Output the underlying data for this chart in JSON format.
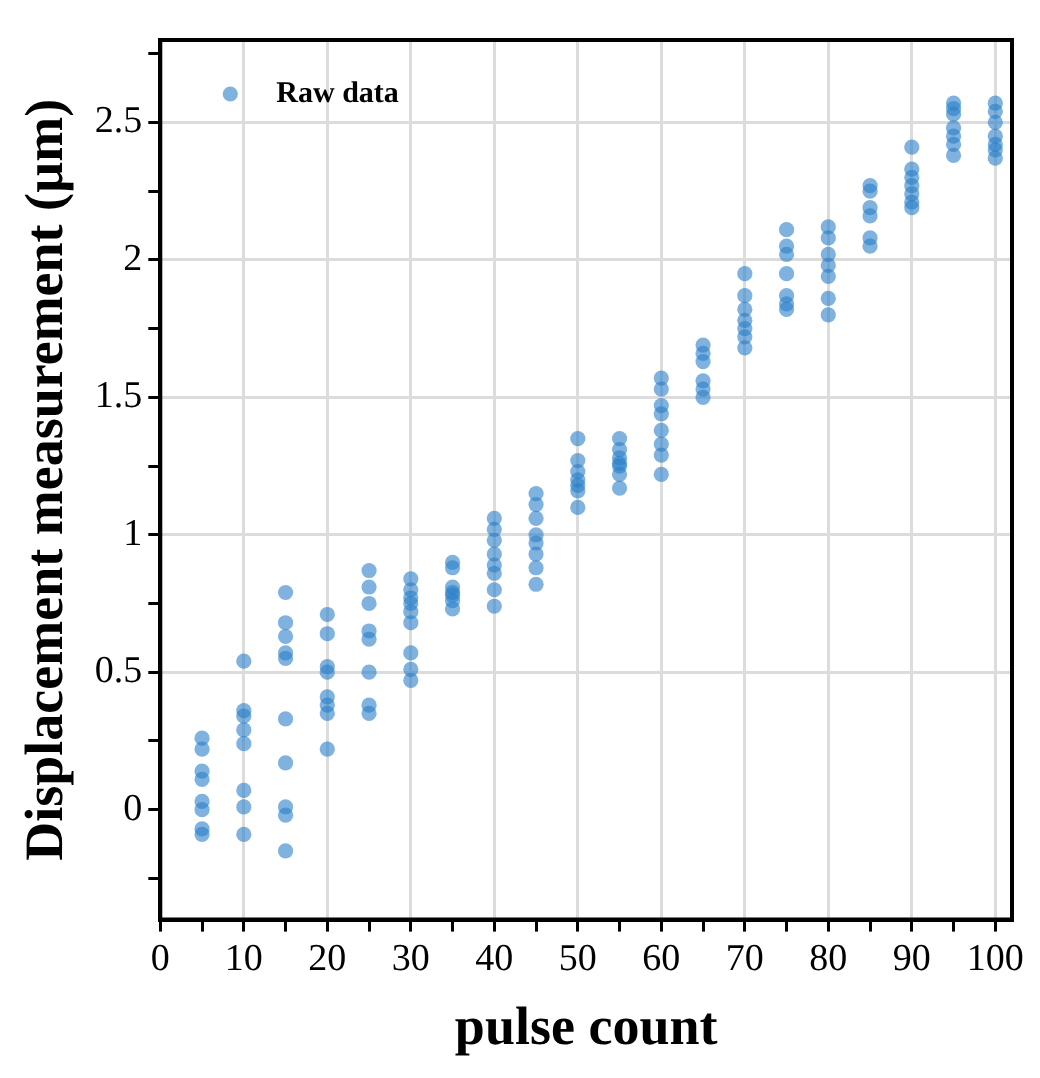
{
  "chart_data": {
    "type": "scatter",
    "xlabel": "pulse count",
    "ylabel": "Displacement measurement (µm)",
    "xlim": [
      0,
      102
    ],
    "ylim": [
      -0.4,
      2.8
    ],
    "xticks": [
      0,
      {
        "value": 5,
        "label": null
      },
      10,
      {
        "value": 15,
        "label": null
      },
      20,
      {
        "value": 25,
        "label": null
      },
      30,
      {
        "value": 35,
        "label": null
      },
      40,
      {
        "value": 45,
        "label": null
      },
      50,
      {
        "value": 55,
        "label": null
      },
      60,
      {
        "value": 65,
        "label": null
      },
      70,
      {
        "value": 75,
        "label": null
      },
      80,
      {
        "value": 85,
        "label": null
      },
      90,
      {
        "value": 95,
        "label": null
      },
      100
    ],
    "yticks": [
      {
        "value": -0.25,
        "label": null
      },
      0,
      {
        "value": 0.25,
        "label": null
      },
      0.5,
      {
        "value": 0.75,
        "label": null
      },
      1,
      {
        "value": 1.25,
        "label": null
      },
      1.5,
      {
        "value": 1.75,
        "label": null
      },
      2,
      {
        "value": 2.25,
        "label": null
      },
      2.5,
      {
        "value": 2.75,
        "label": null
      }
    ],
    "grid": true,
    "legend": "top left",
    "marker": "circle",
    "series": [
      {
        "name": "Raw data",
        "color": "#2a7fc8",
        "x": [
          5,
          5,
          5,
          5,
          5,
          5,
          5,
          5,
          10,
          10,
          10,
          10,
          10,
          10,
          10,
          10,
          15,
          15,
          15,
          15,
          15,
          15,
          15,
          15,
          15,
          15,
          20,
          20,
          20,
          20,
          20,
          20,
          20,
          20,
          25,
          25,
          25,
          25,
          25,
          25,
          25,
          25,
          30,
          30,
          30,
          30,
          30,
          30,
          30,
          30,
          30,
          35,
          35,
          35,
          35,
          35,
          35,
          35,
          40,
          40,
          40,
          40,
          40,
          40,
          40,
          40,
          45,
          45,
          45,
          45,
          45,
          45,
          45,
          45,
          50,
          50,
          50,
          50,
          50,
          50,
          50,
          55,
          55,
          55,
          55,
          55,
          55,
          55,
          60,
          60,
          60,
          60,
          60,
          60,
          60,
          60,
          65,
          65,
          65,
          65,
          65,
          65,
          70,
          70,
          70,
          70,
          70,
          70,
          70,
          75,
          75,
          75,
          75,
          75,
          75,
          75,
          80,
          80,
          80,
          80,
          80,
          80,
          80,
          85,
          85,
          85,
          85,
          85,
          85,
          90,
          90,
          90,
          90,
          90,
          90,
          90,
          95,
          95,
          95,
          95,
          95,
          95,
          95,
          100,
          100,
          100,
          100,
          100,
          100,
          100
        ],
        "values": [
          0.26,
          0.22,
          0.14,
          0.11,
          0.03,
          0.0,
          -0.07,
          -0.09,
          0.54,
          0.36,
          0.34,
          0.29,
          0.24,
          0.07,
          0.01,
          -0.09,
          0.79,
          0.68,
          0.63,
          0.57,
          0.55,
          0.33,
          0.17,
          0.01,
          -0.02,
          -0.15,
          0.71,
          0.64,
          0.52,
          0.5,
          0.41,
          0.38,
          0.35,
          0.22,
          0.87,
          0.81,
          0.75,
          0.65,
          0.62,
          0.5,
          0.38,
          0.35,
          0.84,
          0.8,
          0.77,
          0.75,
          0.72,
          0.68,
          0.57,
          0.51,
          0.47,
          0.9,
          0.88,
          0.81,
          0.79,
          0.78,
          0.76,
          0.73,
          1.06,
          1.02,
          0.98,
          0.93,
          0.89,
          0.86,
          0.8,
          0.74,
          1.15,
          1.11,
          1.06,
          1.0,
          0.97,
          0.93,
          0.88,
          0.82,
          1.35,
          1.27,
          1.23,
          1.2,
          1.18,
          1.16,
          1.1,
          1.35,
          1.31,
          1.28,
          1.26,
          1.25,
          1.22,
          1.17,
          1.57,
          1.53,
          1.47,
          1.44,
          1.38,
          1.33,
          1.29,
          1.22,
          1.69,
          1.66,
          1.63,
          1.56,
          1.53,
          1.5,
          1.95,
          1.87,
          1.82,
          1.78,
          1.75,
          1.72,
          1.68,
          2.11,
          2.05,
          2.02,
          1.95,
          1.87,
          1.84,
          1.82,
          2.12,
          2.08,
          2.02,
          1.98,
          1.94,
          1.86,
          1.8,
          2.27,
          2.25,
          2.19,
          2.16,
          2.08,
          2.05,
          2.41,
          2.33,
          2.3,
          2.27,
          2.24,
          2.21,
          2.19,
          2.57,
          2.55,
          2.53,
          2.48,
          2.45,
          2.42,
          2.38,
          2.57,
          2.54,
          2.5,
          2.45,
          2.42,
          2.4,
          2.37
        ]
      }
    ]
  }
}
